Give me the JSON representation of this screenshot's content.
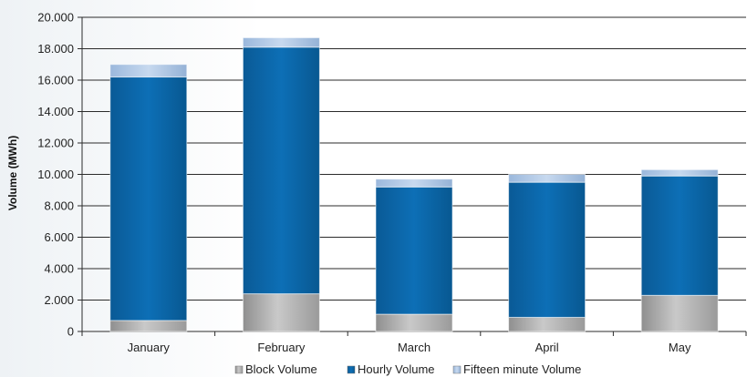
{
  "chart_data": {
    "type": "bar",
    "stacked": true,
    "categories": [
      "January",
      "February",
      "March",
      "April",
      "May"
    ],
    "series": [
      {
        "name": "Block Volume",
        "values": [
          700,
          2400,
          1100,
          900,
          2300
        ],
        "color": "#a8a8a8"
      },
      {
        "name": "Hourly Volume",
        "values": [
          15500,
          15700,
          8100,
          8600,
          7600
        ],
        "color": "#0a66a8"
      },
      {
        "name": "Fifteen minute Volume",
        "values": [
          800,
          600,
          500,
          500,
          400
        ],
        "color": "#a9c4e4"
      }
    ],
    "ylabel": "Volume (MWh)",
    "ylim": [
      0,
      20000
    ],
    "yticks": [
      0,
      2000,
      4000,
      6000,
      8000,
      10000,
      12000,
      14000,
      16000,
      18000,
      20000
    ],
    "ytick_labels": [
      "0",
      "2.000",
      "4.000",
      "6.000",
      "8.000",
      "10.000",
      "12.000",
      "14.000",
      "16.000",
      "18.000",
      "20.000"
    ],
    "grid": true,
    "legend_position": "bottom"
  }
}
